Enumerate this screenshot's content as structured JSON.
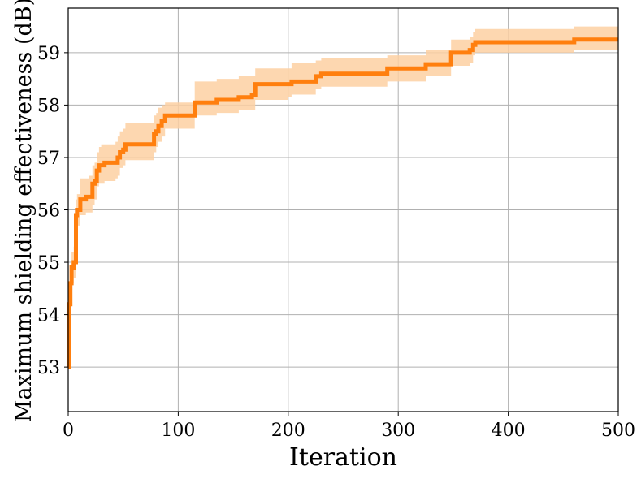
{
  "chart_data": {
    "type": "line",
    "xlabel": "Iteration",
    "ylabel": "Maximum shielding effectiveness (dB)",
    "xlim": [
      0,
      500
    ],
    "ylim": [
      52.15,
      59.85
    ],
    "x_ticks": [
      0,
      100,
      200,
      300,
      400,
      500
    ],
    "y_ticks": [
      53,
      54,
      55,
      56,
      57,
      58,
      59
    ],
    "grid": true,
    "line_color": "#ff7f0e",
    "band_color": "#fdd0a2",
    "series": [
      {
        "x": [
          0,
          1,
          2,
          3,
          5,
          7,
          8,
          10,
          11,
          16,
          19,
          22,
          24,
          26,
          28,
          30,
          33,
          38,
          43,
          45,
          47,
          50,
          52,
          55,
          70,
          78,
          80,
          82,
          85,
          88,
          113,
          115,
          130,
          135,
          150,
          155,
          167,
          170,
          200,
          203,
          220,
          225,
          230,
          287,
          290,
          322,
          325,
          345,
          348,
          365,
          368,
          370,
          458,
          460,
          500
        ],
        "y": [
          53.0,
          54.2,
          54.6,
          54.9,
          55.0,
          55.9,
          56.0,
          56.0,
          56.2,
          56.25,
          56.25,
          56.5,
          56.55,
          56.75,
          56.85,
          56.85,
          56.9,
          56.9,
          56.9,
          57.0,
          57.1,
          57.15,
          57.25,
          57.25,
          57.25,
          57.45,
          57.5,
          57.6,
          57.7,
          57.8,
          57.8,
          58.05,
          58.05,
          58.1,
          58.1,
          58.15,
          58.2,
          58.4,
          58.4,
          58.45,
          58.45,
          58.55,
          58.6,
          58.6,
          58.7,
          58.7,
          58.78,
          58.78,
          59.0,
          59.05,
          59.15,
          59.2,
          59.2,
          59.25,
          59.25
        ],
        "lower": [
          53.0,
          53.9,
          54.3,
          54.6,
          54.7,
          55.6,
          55.7,
          55.7,
          55.9,
          55.95,
          55.95,
          56.1,
          56.2,
          56.45,
          56.5,
          56.5,
          56.55,
          56.55,
          56.6,
          56.65,
          56.8,
          56.85,
          56.95,
          56.95,
          56.95,
          57.1,
          57.2,
          57.3,
          57.4,
          57.55,
          57.55,
          57.8,
          57.8,
          57.85,
          57.85,
          57.9,
          57.9,
          58.1,
          58.15,
          58.2,
          58.2,
          58.3,
          58.35,
          58.35,
          58.45,
          58.45,
          58.55,
          58.55,
          58.75,
          58.8,
          58.95,
          59.0,
          59.0,
          59.05,
          59.05
        ],
        "upper": [
          53.0,
          54.5,
          54.9,
          55.2,
          55.3,
          56.2,
          56.3,
          56.3,
          56.6,
          56.6,
          56.65,
          56.85,
          56.9,
          57.1,
          57.2,
          57.25,
          57.25,
          57.25,
          57.3,
          57.4,
          57.5,
          57.55,
          57.65,
          57.65,
          57.65,
          57.8,
          57.85,
          57.95,
          58.0,
          58.05,
          58.05,
          58.45,
          58.45,
          58.5,
          58.5,
          58.55,
          58.55,
          58.7,
          58.7,
          58.8,
          58.8,
          58.85,
          58.9,
          58.9,
          58.95,
          58.95,
          59.05,
          59.05,
          59.25,
          59.3,
          59.4,
          59.45,
          59.45,
          59.5,
          59.5
        ]
      }
    ]
  }
}
